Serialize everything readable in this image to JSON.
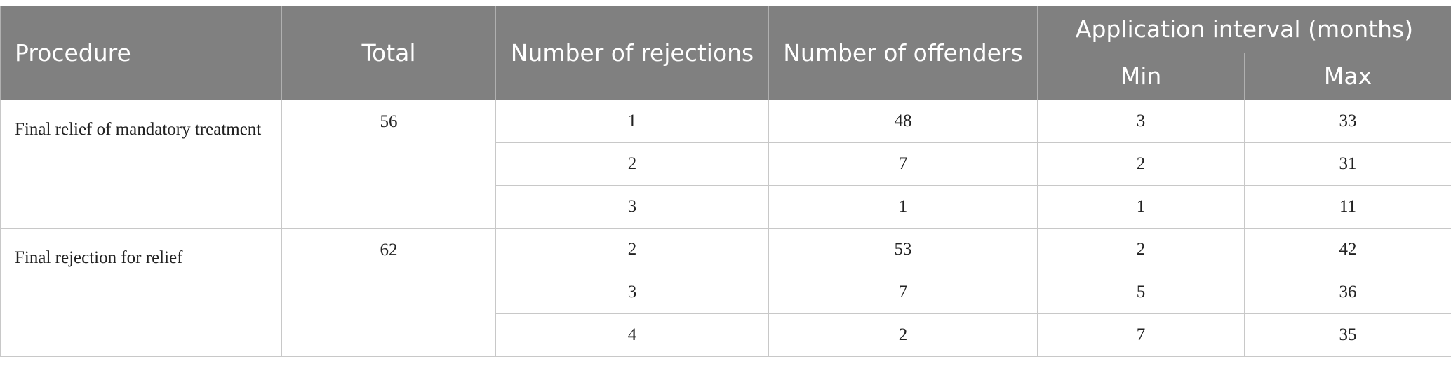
{
  "table": {
    "headers": {
      "procedure": "Procedure",
      "total": "Total",
      "rejections": "Number of rejections",
      "offenders": "Number of offenders",
      "interval": "Application interval (months)",
      "min": "Min",
      "max": "Max"
    },
    "groups": [
      {
        "procedure": "Final relief of mandatory treatment",
        "total": "56",
        "rows": [
          {
            "rejections": "1",
            "offenders": "48",
            "min": "3",
            "max": "33"
          },
          {
            "rejections": "2",
            "offenders": "7",
            "min": "2",
            "max": "31"
          },
          {
            "rejections": "3",
            "offenders": "1",
            "min": "1",
            "max": "11"
          }
        ]
      },
      {
        "procedure": "Final rejection for relief",
        "total": "62",
        "rows": [
          {
            "rejections": "2",
            "offenders": "53",
            "min": "2",
            "max": "42"
          },
          {
            "rejections": "3",
            "offenders": "7",
            "min": "5",
            "max": "36"
          },
          {
            "rejections": "4",
            "offenders": "2",
            "min": "7",
            "max": "35"
          }
        ]
      }
    ]
  }
}
